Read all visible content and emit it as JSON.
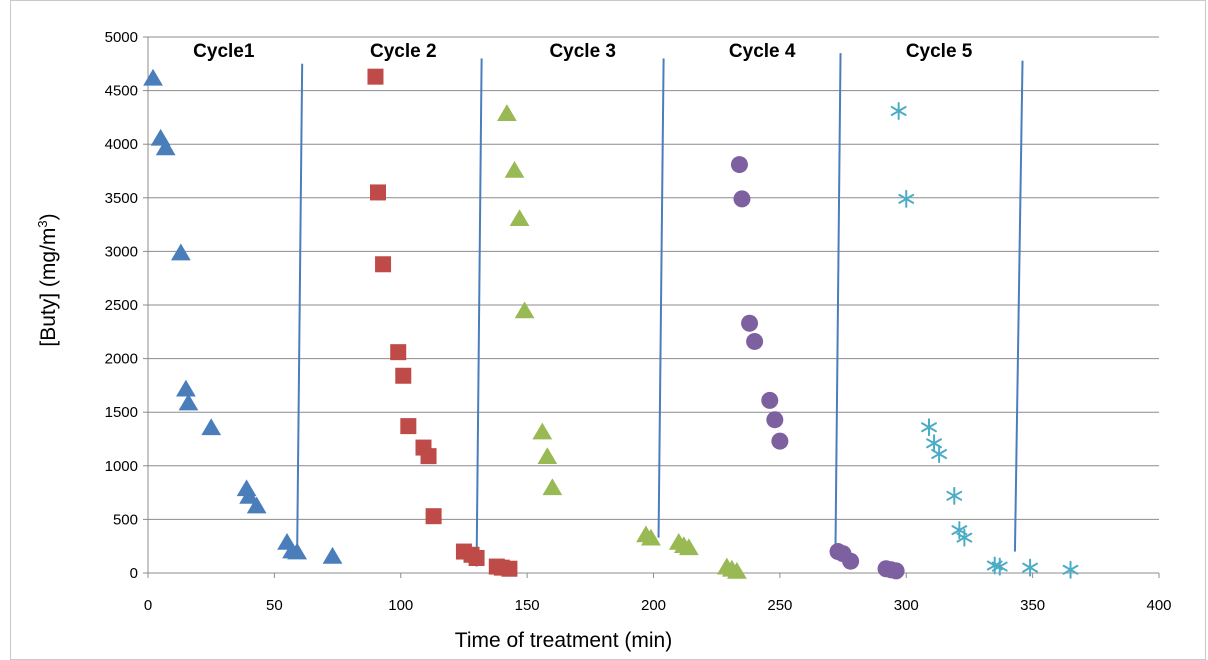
{
  "chart_data": {
    "type": "scatter",
    "title": "",
    "xlabel": "Time of treatment (min)",
    "ylabel": "[Buty] (mg/m3)",
    "ylabel_parts": {
      "main": "[Buty] (mg/m",
      "sup": "3",
      "close": ")"
    },
    "xlim": [
      0,
      400
    ],
    "ylim": [
      0,
      5000
    ],
    "xticks": [
      0,
      50,
      100,
      150,
      200,
      250,
      300,
      350,
      400
    ],
    "yticks": [
      0,
      500,
      1000,
      1500,
      2000,
      2500,
      3000,
      3500,
      4000,
      4500,
      5000
    ],
    "grid": "horizontal",
    "legend": "none",
    "series": [
      {
        "marker": "triangle",
        "color": "#4a7ebb",
        "points": [
          [
            2,
            4610
          ],
          [
            5,
            4050
          ],
          [
            7,
            3960
          ],
          [
            13,
            2980
          ],
          [
            15,
            1710
          ],
          [
            16,
            1580
          ],
          [
            25,
            1350
          ],
          [
            39,
            780
          ],
          [
            40,
            710
          ],
          [
            43,
            620
          ],
          [
            55,
            280
          ],
          [
            57,
            200
          ],
          [
            59,
            190
          ],
          [
            73,
            150
          ]
        ]
      },
      {
        "marker": "square",
        "color": "#be4b48",
        "points": [
          [
            90,
            4630
          ],
          [
            91,
            3550
          ],
          [
            93,
            2880
          ],
          [
            99,
            2060
          ],
          [
            101,
            1840
          ],
          [
            103,
            1370
          ],
          [
            109,
            1170
          ],
          [
            111,
            1090
          ],
          [
            113,
            530
          ],
          [
            125,
            200
          ],
          [
            128,
            170
          ],
          [
            130,
            140
          ],
          [
            138,
            60
          ],
          [
            140,
            50
          ],
          [
            143,
            40
          ]
        ]
      },
      {
        "marker": "triangle",
        "color": "#98b954",
        "points": [
          [
            142,
            4280
          ],
          [
            145,
            3750
          ],
          [
            147,
            3300
          ],
          [
            149,
            2440
          ],
          [
            156,
            1310
          ],
          [
            158,
            1080
          ],
          [
            160,
            790
          ],
          [
            197,
            350
          ],
          [
            199,
            320
          ],
          [
            210,
            280
          ],
          [
            212,
            250
          ],
          [
            214,
            230
          ],
          [
            229,
            50
          ],
          [
            231,
            30
          ],
          [
            233,
            10
          ]
        ]
      },
      {
        "marker": "circle",
        "color": "#7d60a0",
        "points": [
          [
            234,
            3810
          ],
          [
            235,
            3490
          ],
          [
            238,
            2330
          ],
          [
            240,
            2160
          ],
          [
            246,
            1610
          ],
          [
            248,
            1430
          ],
          [
            250,
            1230
          ],
          [
            273,
            200
          ],
          [
            275,
            180
          ],
          [
            278,
            110
          ],
          [
            292,
            40
          ],
          [
            294,
            30
          ],
          [
            296,
            20
          ]
        ]
      },
      {
        "marker": "asterisk",
        "color": "#4bacc6",
        "points": [
          [
            297,
            4310
          ],
          [
            300,
            3490
          ],
          [
            309,
            1360
          ],
          [
            311,
            1210
          ],
          [
            313,
            1110
          ],
          [
            319,
            720
          ],
          [
            321,
            400
          ],
          [
            323,
            330
          ],
          [
            335,
            70
          ],
          [
            337,
            60
          ],
          [
            349,
            50
          ],
          [
            365,
            30
          ]
        ]
      }
    ],
    "cycle_labels": [
      {
        "text": "Cycle1",
        "x": 30
      },
      {
        "text": "Cycle 2",
        "x": 101
      },
      {
        "text": "Cycle 3",
        "x": 172
      },
      {
        "text": "Cycle 4",
        "x": 243
      },
      {
        "text": "Cycle 5",
        "x": 313
      }
    ],
    "cycle_dividers": [
      {
        "x_top": 61,
        "y_top": 4750,
        "x_bottom": 59,
        "y_bottom": 170
      },
      {
        "x_top": 132,
        "y_top": 4800,
        "x_bottom": 130,
        "y_bottom": 60
      },
      {
        "x_top": 204,
        "y_top": 4800,
        "x_bottom": 202,
        "y_bottom": 330
      },
      {
        "x_top": 274,
        "y_top": 4850,
        "x_bottom": 272,
        "y_bottom": 230
      },
      {
        "x_top": 346,
        "y_top": 4780,
        "x_bottom": 343,
        "y_bottom": 200
      }
    ],
    "divider_color": "#4a7ebb"
  }
}
